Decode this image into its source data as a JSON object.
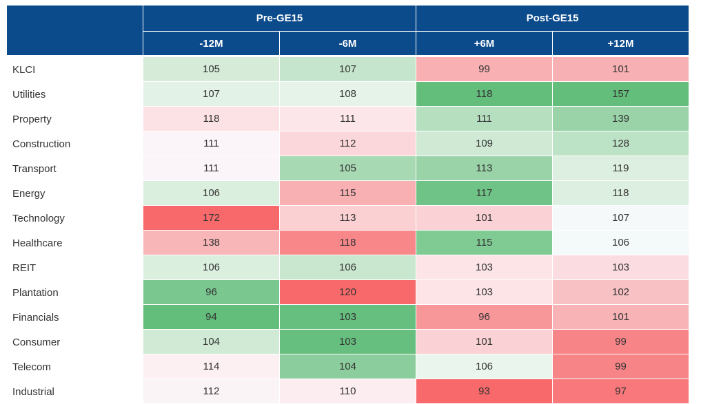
{
  "table": {
    "groups": [
      "Pre-GE15",
      "Post-GE15"
    ],
    "columns": [
      "-12M",
      "-6M",
      "+6M",
      "+12M"
    ],
    "header_color": "#0b4a8b",
    "rows": [
      {
        "label": "KLCI",
        "values": [
          105,
          107,
          99,
          101
        ],
        "colors": [
          "#d6ecd9",
          "#c5e6cc",
          "#f8b0b3",
          "#f7b1b4"
        ]
      },
      {
        "label": "Utilities",
        "values": [
          107,
          108,
          118,
          157
        ],
        "colors": [
          "#e3f2e6",
          "#e6f3e9",
          "#63be7b",
          "#63be7b"
        ]
      },
      {
        "label": "Property",
        "values": [
          118,
          111,
          111,
          139
        ],
        "colors": [
          "#fde2e5",
          "#fce6ea",
          "#b6dfc0",
          "#9ad3a8"
        ]
      },
      {
        "label": "Construction",
        "values": [
          111,
          112,
          109,
          128
        ],
        "colors": [
          "#fbf4f8",
          "#fbd7db",
          "#cfe9d5",
          "#bde3c6"
        ]
      },
      {
        "label": "Transport",
        "values": [
          111,
          105,
          113,
          119
        ],
        "colors": [
          "#fbf4f8",
          "#a7d9b3",
          "#9ad3a8",
          "#dcefe0"
        ]
      },
      {
        "label": "Energy",
        "values": [
          106,
          115,
          117,
          118
        ],
        "colors": [
          "#dbefdf",
          "#f8b0b3",
          "#70c386",
          "#dcefe0"
        ]
      },
      {
        "label": "Technology",
        "values": [
          172,
          113,
          101,
          107
        ],
        "colors": [
          "#f8696b",
          "#fad0d3",
          "#fad2d5",
          "#f5f9fa"
        ]
      },
      {
        "label": "Healthcare",
        "values": [
          138,
          118,
          115,
          106
        ],
        "colors": [
          "#f9b6b9",
          "#f8878a",
          "#80ca93",
          "#f4f9fa"
        ]
      },
      {
        "label": "REIT",
        "values": [
          106,
          106,
          103,
          103
        ],
        "colors": [
          "#dbefdf",
          "#c9e7cf",
          "#fce4e7",
          "#fbdde1"
        ]
      },
      {
        "label": "Plantation",
        "values": [
          96,
          120,
          103,
          102
        ],
        "colors": [
          "#7ac790",
          "#f8696b",
          "#fce4e7",
          "#f8c1c4"
        ]
      },
      {
        "label": "Financials",
        "values": [
          94,
          103,
          96,
          101
        ],
        "colors": [
          "#63be7b",
          "#66bf7e",
          "#f8979a",
          "#f7b3b6"
        ]
      },
      {
        "label": "Consumer",
        "values": [
          104,
          103,
          101,
          99
        ],
        "colors": [
          "#d0ead5",
          "#66bf7e",
          "#fad2d5",
          "#f78588"
        ]
      },
      {
        "label": "Telecom",
        "values": [
          114,
          104,
          106,
          99
        ],
        "colors": [
          "#fcf0f3",
          "#8ccd9d",
          "#eaf5ed",
          "#f78588"
        ]
      },
      {
        "label": "Industrial",
        "values": [
          112,
          110,
          93,
          97
        ],
        "colors": [
          "#fbf4f7",
          "#fcedf0",
          "#f8696b",
          "#f8787b"
        ]
      }
    ]
  }
}
